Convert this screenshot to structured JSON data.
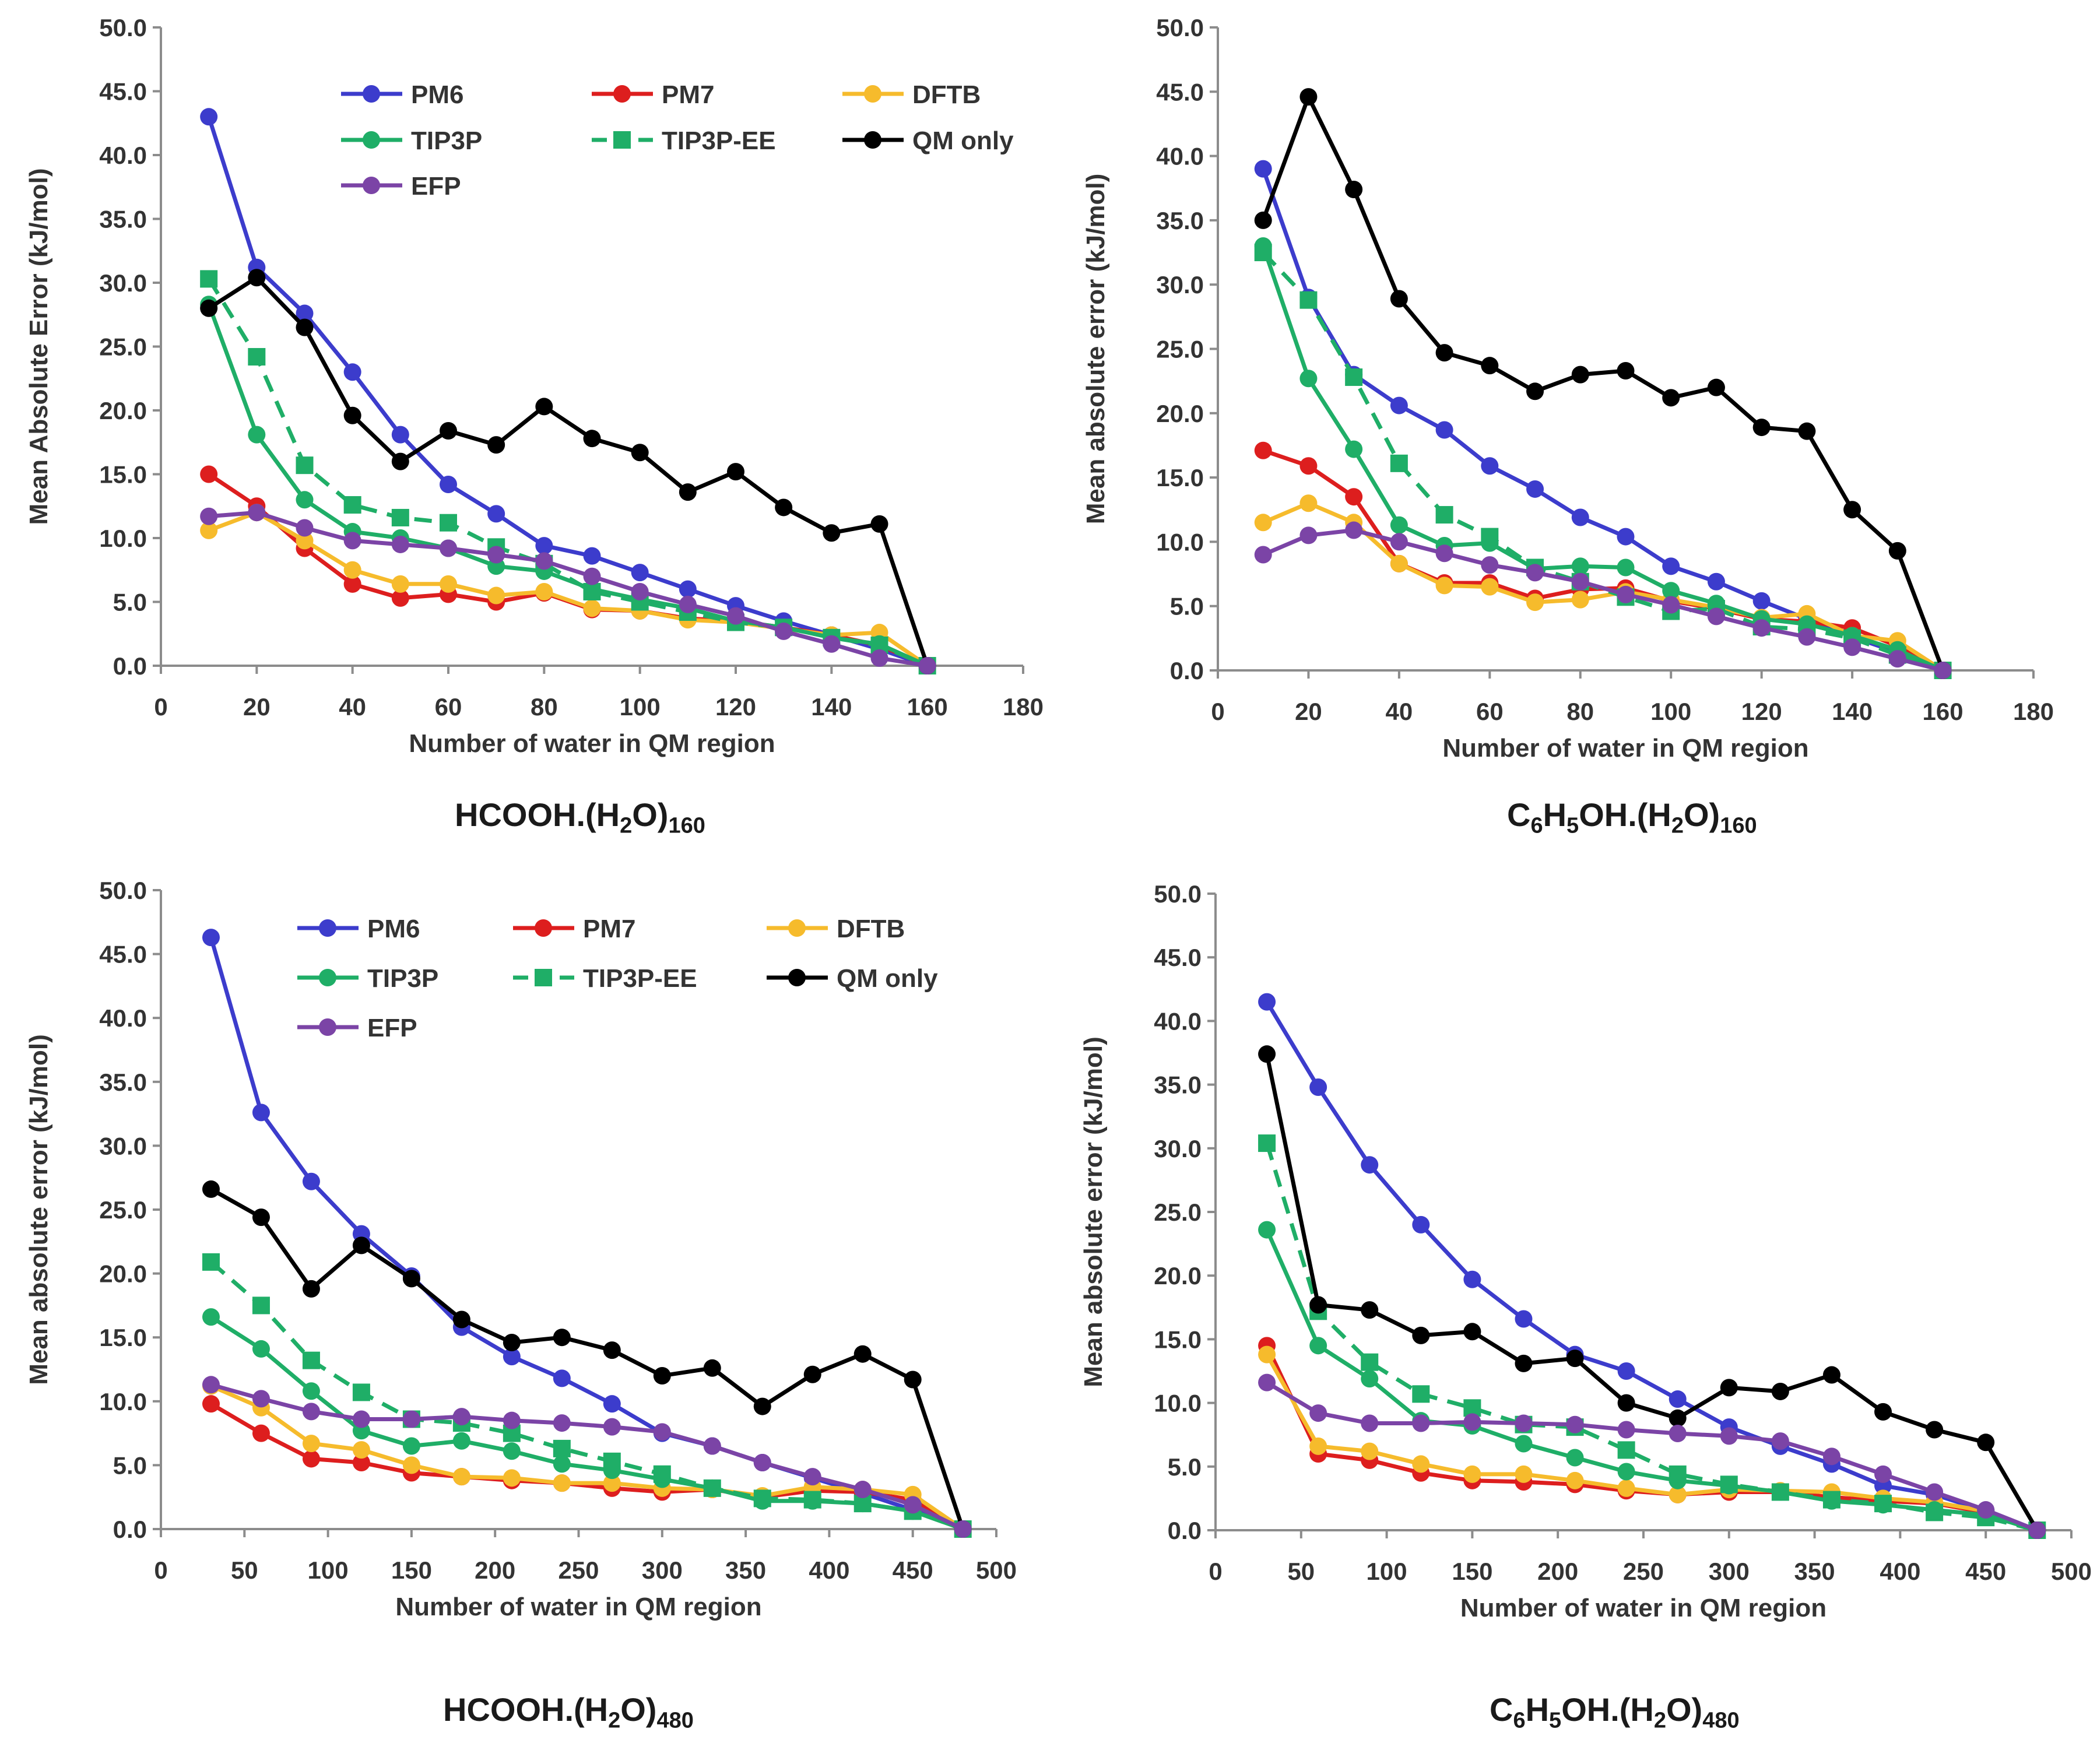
{
  "series_styles": {
    "PM6": {
      "color": "#3c3ccc",
      "marker": "circle",
      "dashed": false
    },
    "PM7": {
      "color": "#dd1e1e",
      "marker": "circle",
      "dashed": false
    },
    "DFTB": {
      "color": "#f6bb2c",
      "marker": "circle",
      "dashed": false
    },
    "TIP3P": {
      "color": "#1fae67",
      "marker": "circle",
      "dashed": false
    },
    "TIP3P-EE": {
      "color": "#1fae67",
      "marker": "square",
      "dashed": true
    },
    "QM only": {
      "color": "#000000",
      "marker": "circle",
      "dashed": false
    },
    "EFP": {
      "color": "#7b44a6",
      "marker": "circle",
      "dashed": false
    }
  },
  "chart_data": [
    {
      "type": "line",
      "title_parts": [
        "HCOOH.(H",
        "2",
        "O)",
        "160"
      ],
      "xlabel": "Number of water in QM region",
      "ylabel": "Mean Absolute Error (kJ/mol)",
      "xlim": [
        0,
        180
      ],
      "ylim": [
        0,
        50
      ],
      "xticks": [
        0,
        20,
        40,
        60,
        80,
        100,
        120,
        140,
        160,
        180
      ],
      "xtick_labels": [
        "0",
        "20",
        "40",
        "60",
        "80",
        "100",
        "120",
        "140",
        "160",
        "180"
      ],
      "yticks": [
        0,
        5,
        10,
        15,
        20,
        25,
        30,
        35,
        40,
        45,
        50
      ],
      "ytick_labels": [
        "0.0",
        "5.0",
        "10.0",
        "15.0",
        "20.0",
        "25.0",
        "30.0",
        "35.0",
        "40.0",
        "45.0",
        "50.0"
      ],
      "legend": [
        "PM6",
        "PM7",
        "DFTB",
        "TIP3P",
        "TIP3P-EE",
        "QM only",
        "EFP"
      ],
      "x": [
        10,
        20,
        30,
        40,
        50,
        60,
        70,
        80,
        90,
        100,
        110,
        120,
        130,
        140,
        150,
        160
      ],
      "series": [
        {
          "name": "PM6",
          "values": [
            43.0,
            31.2,
            27.6,
            23.0,
            18.1,
            14.2,
            11.9,
            9.4,
            8.6,
            7.3,
            6.0,
            4.7,
            3.5,
            2.4,
            1.3,
            0.0
          ]
        },
        {
          "name": "PM7",
          "values": [
            15.0,
            12.5,
            9.2,
            6.4,
            5.3,
            5.6,
            5.0,
            5.7,
            4.4,
            4.3,
            3.7,
            3.5,
            3.0,
            2.4,
            1.6,
            0.0
          ]
        },
        {
          "name": "DFTB",
          "values": [
            10.6,
            12.0,
            9.8,
            7.5,
            6.4,
            6.4,
            5.5,
            5.8,
            4.5,
            4.3,
            3.6,
            3.4,
            2.9,
            2.4,
            2.6,
            0.0
          ]
        },
        {
          "name": "TIP3P",
          "values": [
            28.3,
            18.1,
            13.0,
            10.5,
            10.0,
            9.2,
            7.8,
            7.4,
            6.0,
            5.2,
            4.5,
            3.5,
            3.0,
            2.2,
            1.7,
            0.0
          ]
        },
        {
          "name": "TIP3P-EE",
          "values": [
            30.3,
            24.2,
            15.7,
            12.6,
            11.6,
            11.2,
            9.3,
            8.0,
            5.8,
            5.0,
            4.2,
            3.4,
            3.0,
            2.2,
            1.6,
            0.0
          ]
        },
        {
          "name": "QM only",
          "values": [
            28.0,
            30.4,
            26.5,
            19.6,
            16.0,
            18.4,
            17.3,
            20.3,
            17.8,
            16.7,
            13.6,
            15.2,
            12.4,
            10.4,
            11.1,
            0.0
          ]
        },
        {
          "name": "EFP",
          "values": [
            11.7,
            12.0,
            10.8,
            9.8,
            9.5,
            9.2,
            8.7,
            8.2,
            7.0,
            5.8,
            4.8,
            3.9,
            2.7,
            1.7,
            0.6,
            0.0
          ]
        }
      ]
    },
    {
      "type": "line",
      "title_parts": [
        "C",
        "6",
        "H",
        "5",
        "OH.(H",
        "2",
        "O)",
        "160"
      ],
      "xlabel": "Number of water in QM region",
      "ylabel": "Mean absolute error (kJ/mol)",
      "xlim": [
        0,
        180
      ],
      "ylim": [
        0,
        50
      ],
      "xticks": [
        0,
        20,
        40,
        60,
        80,
        100,
        120,
        140,
        160,
        180
      ],
      "xtick_labels": [
        "0",
        "20",
        "40",
        "60",
        "80",
        "100",
        "120",
        "140",
        "160",
        "180"
      ],
      "yticks": [
        0,
        5,
        10,
        15,
        20,
        25,
        30,
        35,
        40,
        45,
        50
      ],
      "ytick_labels": [
        "0.0",
        "5.0",
        "10.0",
        "15.0",
        "20.0",
        "25.0",
        "30.0",
        "35.0",
        "40.0",
        "45.0",
        "50.0"
      ],
      "legend": [],
      "x": [
        10,
        20,
        30,
        40,
        50,
        60,
        70,
        80,
        90,
        100,
        110,
        120,
        130,
        140,
        150,
        160
      ],
      "series": [
        {
          "name": "PM6",
          "values": [
            39.0,
            29.0,
            23.0,
            20.6,
            18.7,
            15.9,
            14.1,
            11.9,
            10.4,
            8.1,
            6.9,
            5.4,
            4.0,
            2.6,
            1.4,
            0.0
          ]
        },
        {
          "name": "PM7",
          "values": [
            17.1,
            15.9,
            13.5,
            8.3,
            6.8,
            6.8,
            5.6,
            6.3,
            6.4,
            5.4,
            4.8,
            4.0,
            3.8,
            3.3,
            1.9,
            0.0
          ]
        },
        {
          "name": "DFTB",
          "values": [
            11.5,
            13.0,
            11.5,
            8.3,
            6.6,
            6.5,
            5.3,
            5.5,
            6.1,
            5.5,
            4.9,
            4.1,
            4.4,
            2.7,
            2.3,
            0.0
          ]
        },
        {
          "name": "TIP3P",
          "values": [
            33.0,
            22.7,
            17.2,
            11.3,
            9.7,
            9.9,
            7.9,
            8.1,
            8.0,
            6.2,
            5.2,
            4.0,
            3.6,
            2.7,
            1.6,
            0.0
          ]
        },
        {
          "name": "TIP3P-EE",
          "values": [
            32.5,
            28.8,
            22.8,
            16.1,
            12.1,
            10.4,
            8.0,
            6.9,
            5.7,
            4.6,
            4.8,
            3.4,
            3.2,
            2.5,
            1.2,
            0.0
          ]
        },
        {
          "name": "QM only",
          "values": [
            35.0,
            44.6,
            37.4,
            28.9,
            24.7,
            23.7,
            21.7,
            23.0,
            23.3,
            21.2,
            22.0,
            18.9,
            18.6,
            12.5,
            9.3,
            0.0
          ]
        },
        {
          "name": "EFP",
          "values": [
            9.0,
            10.5,
            10.9,
            10.0,
            9.1,
            8.2,
            7.6,
            6.9,
            5.9,
            5.1,
            4.2,
            3.3,
            2.6,
            1.8,
            0.9,
            0.0
          ]
        }
      ]
    },
    {
      "type": "line",
      "title_parts": [
        "HCOOH.(H",
        "2",
        "O)",
        "480"
      ],
      "xlabel": "Number of water in QM region",
      "ylabel": "Mean absolute error (kJ/mol)",
      "xlim": [
        0,
        500
      ],
      "ylim": [
        0,
        50
      ],
      "xticks": [
        0,
        50,
        100,
        150,
        200,
        250,
        300,
        350,
        400,
        450,
        500
      ],
      "xtick_labels": [
        "0",
        "50",
        "100",
        "150",
        "200",
        "250",
        "300",
        "350",
        "400",
        "450",
        "500"
      ],
      "yticks": [
        0,
        5,
        10,
        15,
        20,
        25,
        30,
        35,
        40,
        45,
        50
      ],
      "ytick_labels": [
        "0.0",
        "5.0",
        "10.0",
        "15.0",
        "20.0",
        "25.0",
        "30.0",
        "35.0",
        "40.0",
        "45.0",
        "50.0"
      ],
      "legend": [
        "PM6",
        "PM7",
        "DFTB",
        "TIP3P",
        "TIP3P-EE",
        "QM only",
        "EFP"
      ],
      "x": [
        30,
        60,
        90,
        120,
        150,
        180,
        210,
        240,
        270,
        300,
        330,
        360,
        390,
        420,
        450,
        480
      ],
      "series": [
        {
          "name": "PM6",
          "values": [
            46.3,
            32.6,
            27.2,
            23.1,
            19.8,
            15.8,
            13.5,
            11.8,
            9.8,
            7.5,
            6.5,
            5.2,
            4.0,
            2.8,
            1.5,
            0.0
          ]
        },
        {
          "name": "PM7",
          "values": [
            9.8,
            7.5,
            5.5,
            5.2,
            4.4,
            4.1,
            3.8,
            3.6,
            3.2,
            2.9,
            3.1,
            2.5,
            3.0,
            2.9,
            2.3,
            0.0
          ]
        },
        {
          "name": "DFTB",
          "values": [
            11.2,
            9.5,
            6.7,
            6.2,
            5.0,
            4.1,
            4.0,
            3.6,
            3.6,
            3.2,
            3.1,
            2.6,
            3.3,
            3.1,
            2.7,
            0.0
          ]
        },
        {
          "name": "TIP3P",
          "values": [
            16.6,
            14.1,
            10.8,
            7.7,
            6.5,
            6.9,
            6.1,
            5.1,
            4.6,
            3.9,
            3.2,
            2.2,
            2.2,
            2.0,
            1.4,
            0.0
          ]
        },
        {
          "name": "TIP3P-EE",
          "values": [
            20.9,
            17.5,
            13.2,
            10.7,
            8.6,
            8.3,
            7.5,
            6.3,
            5.3,
            4.3,
            3.2,
            2.4,
            2.3,
            2.0,
            1.4,
            0.0
          ]
        },
        {
          "name": "QM only",
          "values": [
            26.6,
            24.4,
            18.8,
            22.2,
            19.6,
            16.4,
            14.6,
            15.0,
            14.0,
            12.0,
            12.6,
            9.6,
            12.1,
            13.7,
            11.7,
            0.0
          ]
        },
        {
          "name": "EFP",
          "values": [
            11.3,
            10.2,
            9.2,
            8.6,
            8.6,
            8.8,
            8.5,
            8.3,
            8.0,
            7.6,
            6.5,
            5.2,
            4.1,
            3.1,
            1.9,
            0.0
          ]
        }
      ]
    },
    {
      "type": "line",
      "title_parts": [
        "C",
        "6",
        "H",
        "5",
        "OH.(H",
        "2",
        "O)",
        "480"
      ],
      "xlabel": "Number of water in QM region",
      "ylabel": "Mean absolute error (kJ/mol)",
      "xlim": [
        0,
        500
      ],
      "ylim": [
        0,
        50
      ],
      "xticks": [
        0,
        50,
        100,
        150,
        200,
        250,
        300,
        350,
        400,
        450,
        500
      ],
      "xtick_labels": [
        "0",
        "50",
        "100",
        "150",
        "200",
        "250",
        "300",
        "350",
        "400",
        "450",
        "500"
      ],
      "yticks": [
        0,
        5,
        10,
        15,
        20,
        25,
        30,
        35,
        40,
        45,
        50
      ],
      "ytick_labels": [
        "0.0",
        "5.0",
        "10.0",
        "15.0",
        "20.0",
        "25.0",
        "30.0",
        "35.0",
        "40.0",
        "45.0",
        "50.0"
      ],
      "legend": [],
      "x": [
        30,
        60,
        90,
        120,
        150,
        180,
        210,
        240,
        270,
        300,
        330,
        360,
        390,
        420,
        450,
        480
      ],
      "series": [
        {
          "name": "PM6",
          "values": [
            41.5,
            34.8,
            28.7,
            24.0,
            19.7,
            16.6,
            13.8,
            12.5,
            10.3,
            8.1,
            6.6,
            5.2,
            3.5,
            2.8,
            1.5,
            0.0
          ]
        },
        {
          "name": "PM7",
          "values": [
            14.5,
            6.0,
            5.5,
            4.5,
            3.9,
            3.8,
            3.6,
            3.1,
            2.8,
            3.0,
            3.0,
            2.6,
            2.3,
            2.1,
            1.4,
            0.0
          ]
        },
        {
          "name": "DFTB",
          "values": [
            13.8,
            6.6,
            6.2,
            5.2,
            4.4,
            4.4,
            3.9,
            3.3,
            2.8,
            3.2,
            3.1,
            3.0,
            2.5,
            2.2,
            1.5,
            0.0
          ]
        },
        {
          "name": "TIP3P",
          "values": [
            23.6,
            14.5,
            11.9,
            8.6,
            8.2,
            6.8,
            5.7,
            4.6,
            3.9,
            3.5,
            3.0,
            2.3,
            2.0,
            1.6,
            1.2,
            0.0
          ]
        },
        {
          "name": "TIP3P-EE",
          "values": [
            30.4,
            17.2,
            13.2,
            10.7,
            9.6,
            8.3,
            8.1,
            6.3,
            4.4,
            3.6,
            3.0,
            2.4,
            2.1,
            1.4,
            1.0,
            0.0
          ]
        },
        {
          "name": "QM only",
          "values": [
            37.4,
            17.7,
            17.3,
            15.3,
            15.6,
            13.1,
            13.5,
            10.0,
            8.8,
            11.2,
            10.9,
            12.2,
            9.3,
            7.9,
            6.9,
            0.0
          ]
        },
        {
          "name": "EFP",
          "values": [
            11.6,
            9.2,
            8.4,
            8.4,
            8.5,
            8.4,
            8.3,
            7.9,
            7.6,
            7.4,
            7.0,
            5.8,
            4.4,
            3.0,
            1.6,
            0.0
          ]
        }
      ]
    }
  ]
}
